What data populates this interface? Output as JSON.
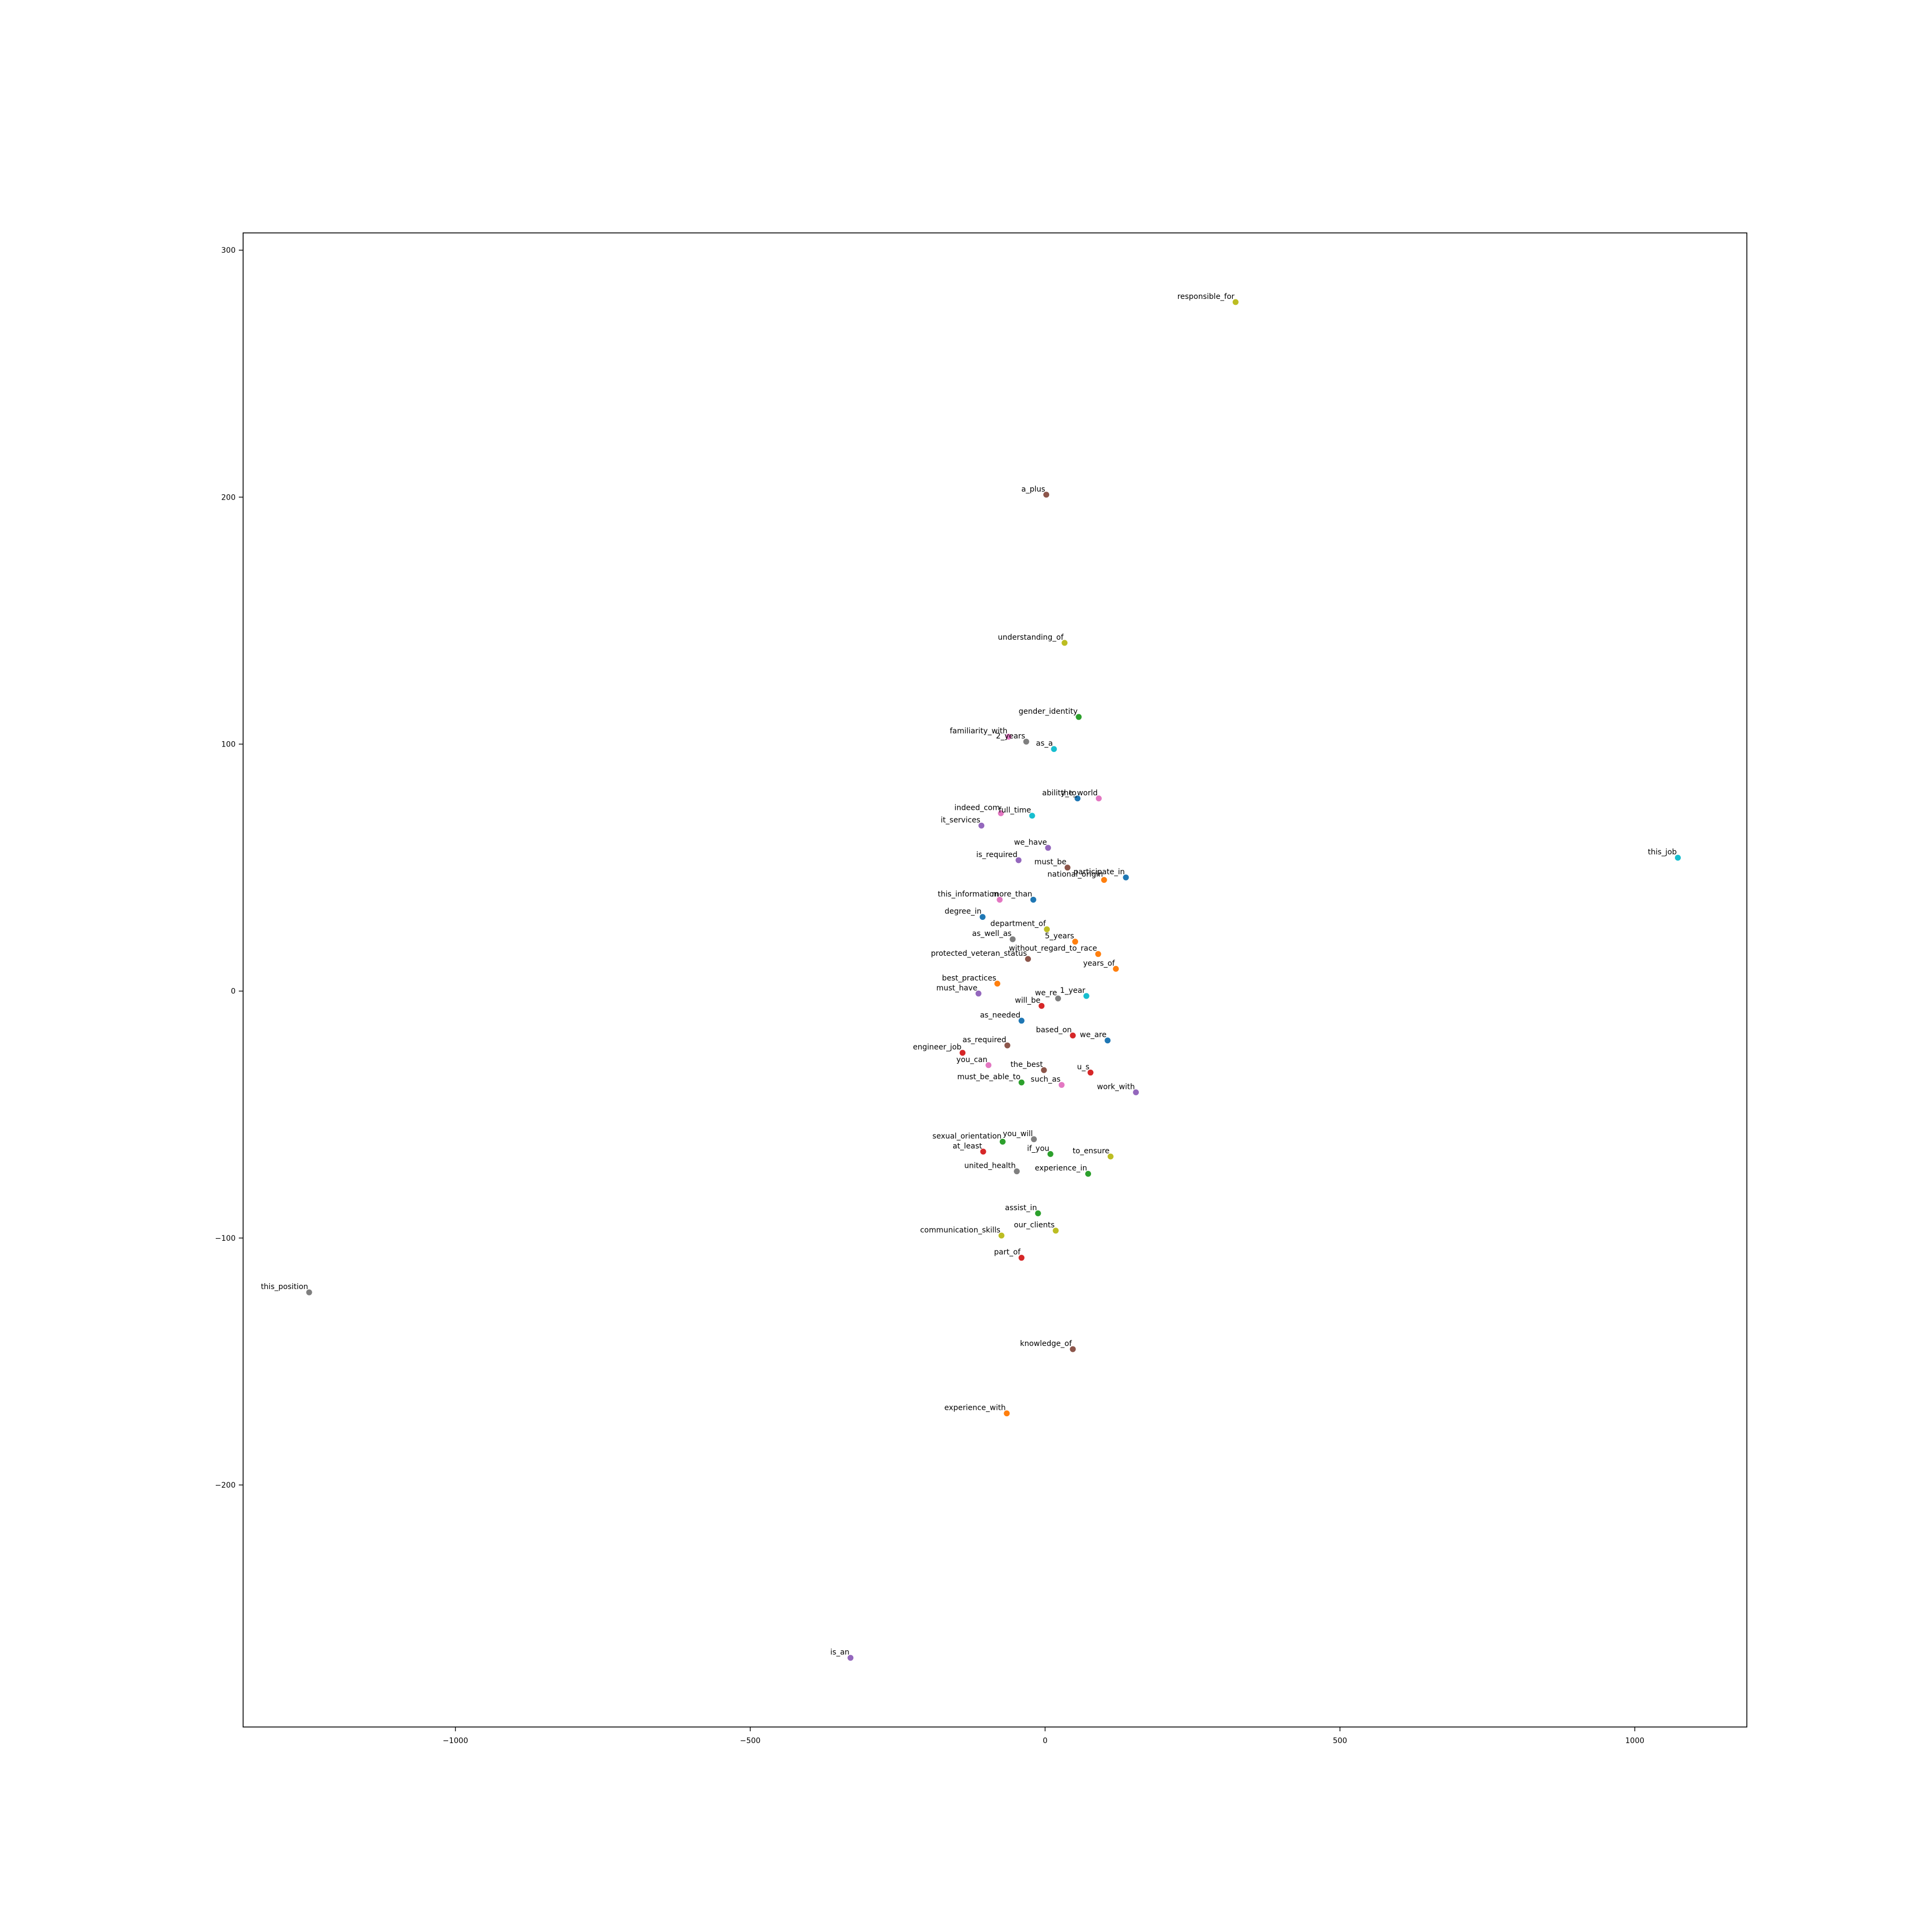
{
  "chart_data": {
    "type": "scatter",
    "title": "",
    "xlabel": "",
    "ylabel": "",
    "xlim": [
      -1360,
      1190
    ],
    "ylim": [
      -298,
      307
    ],
    "x_ticks": [
      -1000,
      -500,
      0,
      500,
      1000
    ],
    "x_tick_labels": [
      "−1000",
      "−500",
      "0",
      "500",
      "1000"
    ],
    "y_ticks": [
      -200,
      -100,
      0,
      100,
      200,
      300
    ],
    "y_tick_labels": [
      "−200",
      "−100",
      "0",
      "100",
      "200",
      "300"
    ],
    "grid": false,
    "legend": "none",
    "points": [
      {
        "label": "responsible_for",
        "x": 323,
        "y": 279,
        "color": "#bcbd22"
      },
      {
        "label": "a_plus",
        "x": 2,
        "y": 201,
        "color": "#8c564b"
      },
      {
        "label": "understanding_of",
        "x": 33,
        "y": 141,
        "color": "#bcbd22"
      },
      {
        "label": "gender_identity",
        "x": 57,
        "y": 111,
        "color": "#2ca02c"
      },
      {
        "label": "familiarity_with",
        "x": -62,
        "y": 103,
        "color": "#e377c2"
      },
      {
        "label": "2_years",
        "x": -32,
        "y": 101,
        "color": "#7f7f7f"
      },
      {
        "label": "as_a",
        "x": 15,
        "y": 98,
        "color": "#17becf"
      },
      {
        "label": "ability_to",
        "x": 55,
        "y": 78,
        "color": "#1f77b4"
      },
      {
        "label": "the_world",
        "x": 91,
        "y": 78,
        "color": "#e377c2"
      },
      {
        "label": "indeed_com",
        "x": -75,
        "y": 72,
        "color": "#e377c2"
      },
      {
        "label": "full_time",
        "x": -22,
        "y": 71,
        "color": "#17becf"
      },
      {
        "label": "it_services",
        "x": -108,
        "y": 67,
        "color": "#9467bd"
      },
      {
        "label": "this_job",
        "x": 1073,
        "y": 54,
        "color": "#17becf"
      },
      {
        "label": "we_have",
        "x": 5,
        "y": 58,
        "color": "#9467bd"
      },
      {
        "label": "is_required",
        "x": -45,
        "y": 53,
        "color": "#9467bd"
      },
      {
        "label": "must_be",
        "x": 38,
        "y": 50,
        "color": "#8c564b"
      },
      {
        "label": "participate_in",
        "x": 137,
        "y": 46,
        "color": "#1f77b4"
      },
      {
        "label": "national_origin",
        "x": 100,
        "y": 45,
        "color": "#ff7f0e"
      },
      {
        "label": "this_information",
        "x": -77,
        "y": 37,
        "color": "#e377c2"
      },
      {
        "label": "more_than",
        "x": -20,
        "y": 37,
        "color": "#1f77b4"
      },
      {
        "label": "degree_in",
        "x": -106,
        "y": 30,
        "color": "#1f77b4"
      },
      {
        "label": "department_of",
        "x": 3,
        "y": 25,
        "color": "#bcbd22"
      },
      {
        "label": "as_well_as",
        "x": -55,
        "y": 21,
        "color": "#7f7f7f"
      },
      {
        "label": "5_years",
        "x": 51,
        "y": 20,
        "color": "#ff7f0e"
      },
      {
        "label": "without_regard_to_race",
        "x": 90,
        "y": 15,
        "color": "#ff7f0e"
      },
      {
        "label": "protected_veteran_status",
        "x": -29,
        "y": 13,
        "color": "#8c564b"
      },
      {
        "label": "years_of",
        "x": 120,
        "y": 9,
        "color": "#ff7f0e"
      },
      {
        "label": "best_practices",
        "x": -81,
        "y": 3,
        "color": "#ff7f0e"
      },
      {
        "label": "must_have",
        "x": -113,
        "y": -1,
        "color": "#9467bd"
      },
      {
        "label": "1_year",
        "x": 70,
        "y": -2,
        "color": "#17becf"
      },
      {
        "label": "we_re",
        "x": 22,
        "y": -3,
        "color": "#7f7f7f"
      },
      {
        "label": "will_be",
        "x": -6,
        "y": -6,
        "color": "#d62728"
      },
      {
        "label": "as_needed",
        "x": -40,
        "y": -12,
        "color": "#1f77b4"
      },
      {
        "label": "based_on",
        "x": 47,
        "y": -18,
        "color": "#d62728"
      },
      {
        "label": "we_are",
        "x": 106,
        "y": -20,
        "color": "#1f77b4"
      },
      {
        "label": "as_required",
        "x": -64,
        "y": -22,
        "color": "#8c564b"
      },
      {
        "label": "engineer_job",
        "x": -140,
        "y": -25,
        "color": "#d62728"
      },
      {
        "label": "you_can",
        "x": -96,
        "y": -30,
        "color": "#e377c2"
      },
      {
        "label": "the_best",
        "x": -2,
        "y": -32,
        "color": "#8c564b"
      },
      {
        "label": "u_s",
        "x": 77,
        "y": -33,
        "color": "#d62728"
      },
      {
        "label": "must_be_able_to",
        "x": -40,
        "y": -37,
        "color": "#2ca02c"
      },
      {
        "label": "such_as",
        "x": 28,
        "y": -38,
        "color": "#e377c2"
      },
      {
        "label": "work_with",
        "x": 154,
        "y": -41,
        "color": "#9467bd"
      },
      {
        "label": "sexual_orientation",
        "x": -72,
        "y": -61,
        "color": "#2ca02c"
      },
      {
        "label": "you_will",
        "x": -19,
        "y": -60,
        "color": "#7f7f7f"
      },
      {
        "label": "at_least",
        "x": -105,
        "y": -65,
        "color": "#d62728"
      },
      {
        "label": "if_you",
        "x": 9,
        "y": -66,
        "color": "#2ca02c"
      },
      {
        "label": "to_ensure",
        "x": 111,
        "y": -67,
        "color": "#bcbd22"
      },
      {
        "label": "united_health",
        "x": -48,
        "y": -73,
        "color": "#7f7f7f"
      },
      {
        "label": "experience_in",
        "x": 73,
        "y": -74,
        "color": "#2ca02c"
      },
      {
        "label": "assist_in",
        "x": -12,
        "y": -90,
        "color": "#2ca02c"
      },
      {
        "label": "our_clients",
        "x": 18,
        "y": -97,
        "color": "#bcbd22"
      },
      {
        "label": "communication_skills",
        "x": -74,
        "y": -99,
        "color": "#bcbd22"
      },
      {
        "label": "part_of",
        "x": -40,
        "y": -108,
        "color": "#d62728"
      },
      {
        "label": "this_position",
        "x": -1248,
        "y": -122,
        "color": "#7f7f7f"
      },
      {
        "label": "knowledge_of",
        "x": 47,
        "y": -145,
        "color": "#8c564b"
      },
      {
        "label": "experience_with",
        "x": -65,
        "y": -171,
        "color": "#ff7f0e"
      },
      {
        "label": "is_an",
        "x": -330,
        "y": -270,
        "color": "#9467bd"
      }
    ]
  }
}
